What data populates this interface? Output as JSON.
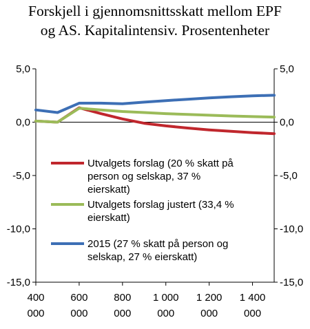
{
  "title_lines": [
    "Forskjell i gjennomsnittsskatt mellom EPF",
    "og AS. Kapitalintensiv. Prosentenheter"
  ],
  "chart_data": {
    "type": "line",
    "x": [
      400000,
      500000,
      600000,
      700000,
      800000,
      900000,
      1000000,
      1100000,
      1200000,
      1300000,
      1400000,
      1500000
    ],
    "xlim": [
      400000,
      1500000
    ],
    "ylim": [
      -15,
      5
    ],
    "x_ticks": [
      400000,
      600000,
      800000,
      1000000,
      1200000,
      1400000
    ],
    "x_tick_labels": [
      [
        "400",
        "000"
      ],
      [
        "600",
        "000"
      ],
      [
        "800",
        "000"
      ],
      [
        "1 000",
        "000"
      ],
      [
        "1 200",
        "000"
      ],
      [
        "1 400",
        "000"
      ]
    ],
    "y_ticks": [
      5,
      0,
      -5,
      -10,
      -15
    ],
    "y_tick_labels": [
      "5,0",
      "0,0",
      "-5,0",
      "-10,0",
      "-15,0"
    ],
    "secondary_y_axis": true,
    "grid": false,
    "legend_position": "center-right",
    "series": [
      {
        "legend_lines": [
          "Utvalgets forslag (20 % skatt på",
          "person og selskap, 37 %",
          "eierskatt)"
        ],
        "color": "#c0272d",
        "values": [
          0.1,
          0.0,
          1.35,
          0.8,
          0.3,
          -0.1,
          -0.35,
          -0.55,
          -0.72,
          -0.86,
          -0.98,
          -1.08
        ]
      },
      {
        "legend_lines": [
          "Utvalgets forslag justert (33,4 %",
          "eierskatt)"
        ],
        "color": "#9bbb59",
        "values": [
          0.1,
          0.0,
          1.3,
          1.15,
          1.0,
          0.9,
          0.8,
          0.72,
          0.65,
          0.58,
          0.52,
          0.48
        ]
      },
      {
        "legend_lines": [
          "2015 (27 % skatt på person og",
          "selskap, 27 % eierskatt)"
        ],
        "color": "#3d6fb5",
        "values": [
          1.15,
          0.9,
          1.78,
          1.78,
          1.72,
          1.88,
          2.02,
          2.15,
          2.28,
          2.38,
          2.47,
          2.52
        ]
      }
    ]
  }
}
